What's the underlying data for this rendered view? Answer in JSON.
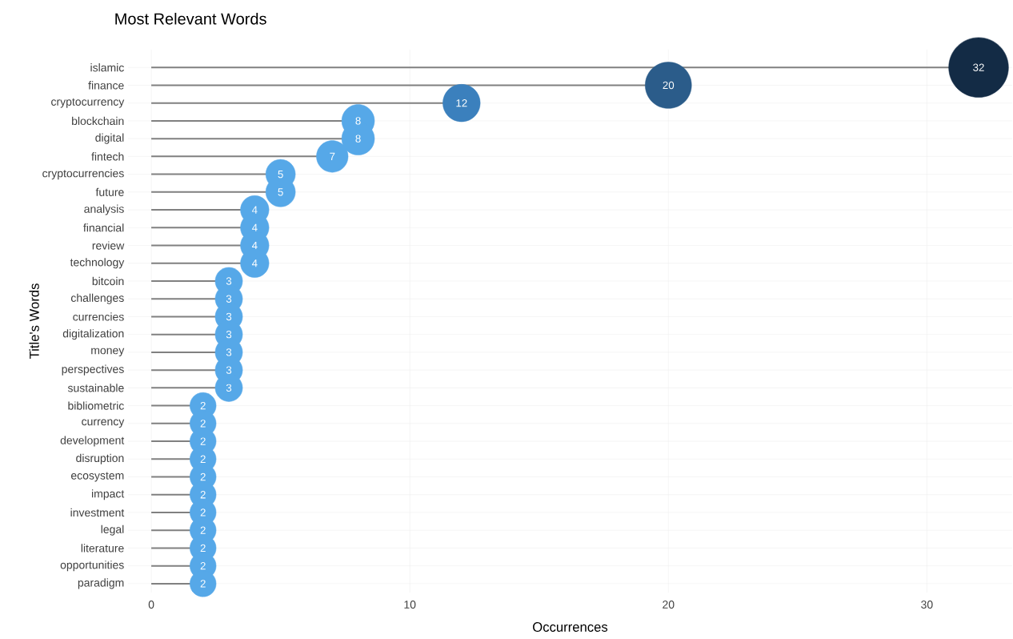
{
  "chart_data": {
    "type": "lollipop",
    "orientation": "horizontal",
    "title": "Most Relevant Words",
    "xlabel": "Occurrences",
    "ylabel": "Title's Words",
    "categories": [
      "islamic",
      "finance",
      "cryptocurrency",
      "blockchain",
      "digital",
      "fintech",
      "cryptocurrencies",
      "future",
      "analysis",
      "financial",
      "review",
      "technology",
      "bitcoin",
      "challenges",
      "currencies",
      "digitalization",
      "money",
      "perspectives",
      "sustainable",
      "bibliometric",
      "currency",
      "development",
      "disruption",
      "ecosystem",
      "impact",
      "investment",
      "legal",
      "literature",
      "opportunities",
      "paradigm"
    ],
    "values": [
      32,
      20,
      12,
      8,
      8,
      7,
      5,
      5,
      4,
      4,
      4,
      4,
      3,
      3,
      3,
      3,
      3,
      3,
      3,
      2,
      2,
      2,
      2,
      2,
      2,
      2,
      2,
      2,
      2,
      2
    ],
    "colors": [
      "#132b45",
      "#2b5c8a",
      "#3b80bd",
      "#56a8e8",
      "#56a8e8",
      "#56a8e8",
      "#56a8e8",
      "#56a8e8",
      "#56a8e8",
      "#56a8e8",
      "#56a8e8",
      "#56a8e8",
      "#56a8e8",
      "#56a8e8",
      "#56a8e8",
      "#56a8e8",
      "#56a8e8",
      "#56a8e8",
      "#56a8e8",
      "#56a8e8",
      "#56a8e8",
      "#56a8e8",
      "#56a8e8",
      "#56a8e8",
      "#56a8e8",
      "#56a8e8",
      "#56a8e8",
      "#56a8e8",
      "#56a8e8",
      "#56a8e8"
    ],
    "sizes": [
      1,
      0.6,
      0.39,
      0.3,
      0.3,
      0.28,
      0.245,
      0.245,
      0.227,
      0.227,
      0.227,
      0.227,
      0.209,
      0.209,
      0.209,
      0.209,
      0.209,
      0.209,
      0.209,
      0.192,
      0.192,
      0.192,
      0.192,
      0.192,
      0.192,
      0.192,
      0.192,
      0.192,
      0.192,
      0.192
    ],
    "xlim": [
      -0.9,
      33.3
    ],
    "xticks": [
      0,
      10,
      20,
      30
    ],
    "grid": true,
    "data_labels": true
  }
}
